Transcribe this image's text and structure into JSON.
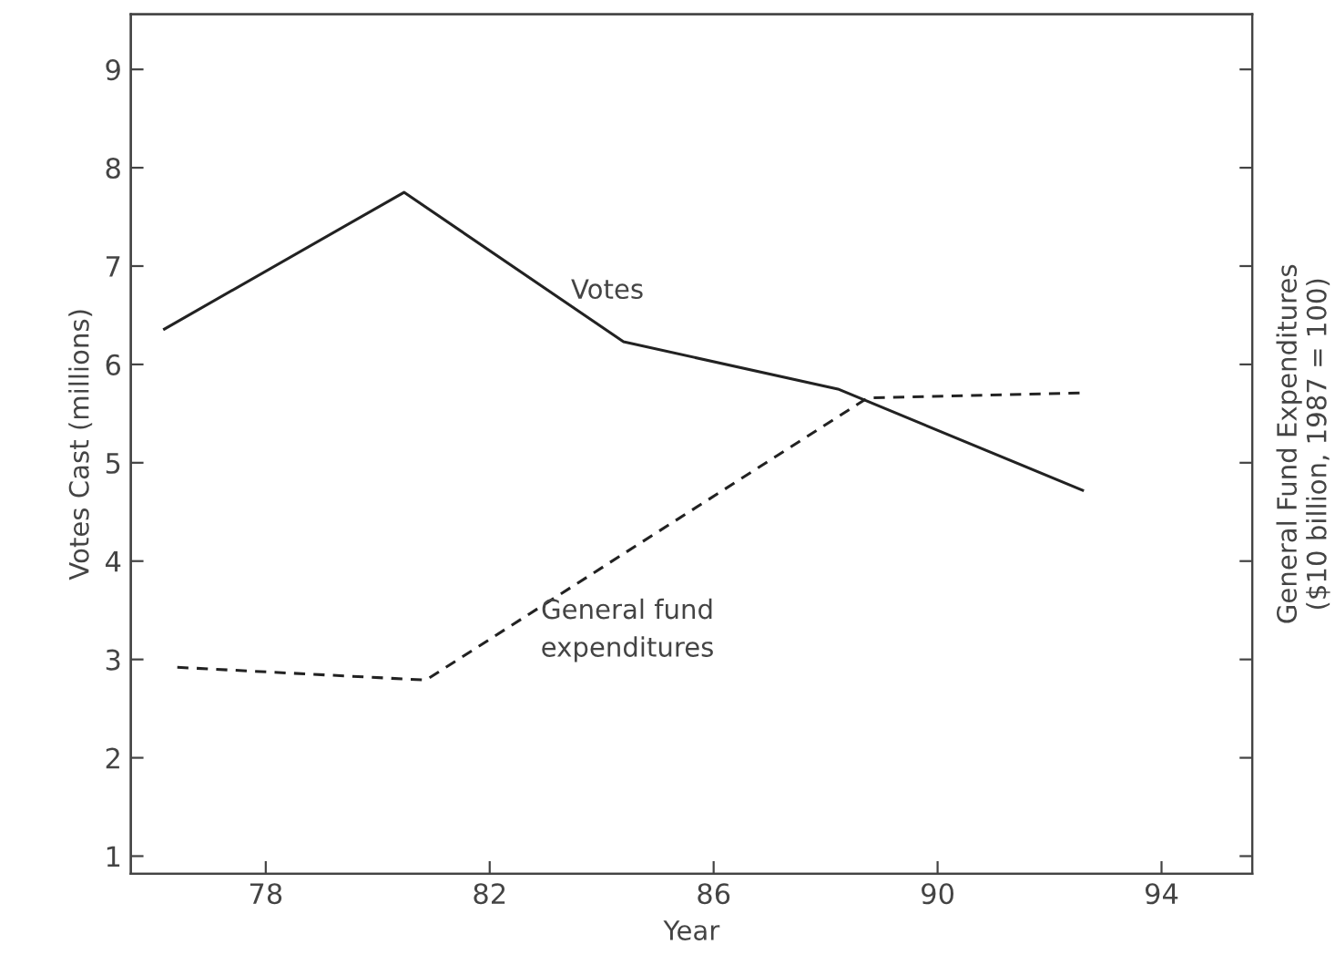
{
  "chart_data": {
    "type": "line",
    "xlabel": "Year",
    "ylabel": "Votes Cast (millions)",
    "y2label": "General Fund Expenditures\n($10 billion, 1987 = 100)",
    "xlim": [
      75.59,
      95.62
    ],
    "xticks": [
      78,
      82,
      86,
      90,
      94
    ],
    "ylim": [
      0.82,
      9.56
    ],
    "yticks": [
      1,
      2,
      3,
      4,
      5,
      6,
      7,
      8,
      9
    ],
    "grid": false,
    "marker": "none",
    "series": [
      {
        "color": "#222222",
        "line_style": "solid",
        "x": [
          76.19,
          80.47,
          84.39,
          88.22,
          92.59
        ],
        "values": [
          6.36,
          7.75,
          6.23,
          5.75,
          4.72
        ]
      },
      {
        "color": "#222222",
        "line_style": "dashed",
        "x": [
          76.42,
          80.86,
          88.75,
          92.59
        ],
        "values": [
          2.92,
          2.79,
          5.66,
          5.71
        ]
      }
    ],
    "annotations": [
      "Votes",
      "General fund\nexpenditures"
    ]
  }
}
